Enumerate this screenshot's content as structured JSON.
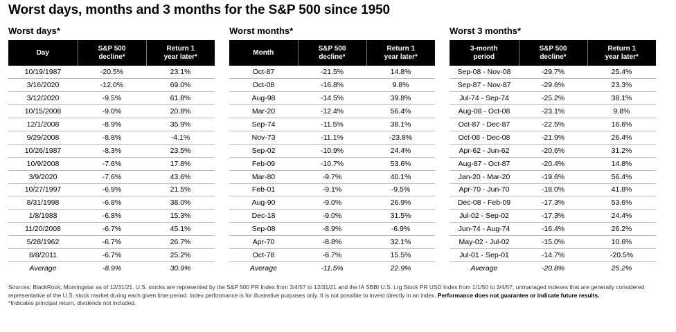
{
  "title": "Worst days, months and 3 months for the S&P 500 since 1950",
  "tables": [
    {
      "title": "Worst days*",
      "headers": [
        "Day",
        "S&P 500 decline*",
        "Return 1 year later*"
      ],
      "rows": [
        [
          "10/19/1987",
          "-20.5%",
          "23.1%"
        ],
        [
          "3/16/2020",
          "-12.0%",
          "69.0%"
        ],
        [
          "3/12/2020",
          "-9.5%",
          "61.8%"
        ],
        [
          "10/15/2008",
          "-9.0%",
          "20.8%"
        ],
        [
          "12/1/2008",
          "-8.9%",
          "35.9%"
        ],
        [
          "9/29/2008",
          "-8.8%",
          "-4.1%"
        ],
        [
          "10/26/1987",
          "-8.3%",
          "23.5%"
        ],
        [
          "10/9/2008",
          "-7.6%",
          "17.8%"
        ],
        [
          "3/9/2020",
          "-7.6%",
          "43.6%"
        ],
        [
          "10/27/1997",
          "-6.9%",
          "21.5%"
        ],
        [
          "8/31/1998",
          "-6.8%",
          "38.0%"
        ],
        [
          "1/8/1988",
          "-6.8%",
          "15.3%"
        ],
        [
          "11/20/2008",
          "-6.7%",
          "45.1%"
        ],
        [
          "5/28/1962",
          "-6.7%",
          "26.7%"
        ],
        [
          "8/8/2011",
          "-6.7%",
          "25.2%"
        ]
      ],
      "average": [
        "Average",
        "-8.9%",
        "30.9%"
      ]
    },
    {
      "title": "Worst months*",
      "headers": [
        "Month",
        "S&P 500 decline*",
        "Return 1 year later*"
      ],
      "rows": [
        [
          "Oct-87",
          "-21.5%",
          "14.8%"
        ],
        [
          "Oct-08",
          "-16.8%",
          "9.8%"
        ],
        [
          "Aug-98",
          "-14.5%",
          "39.8%"
        ],
        [
          "Mar-20",
          "-12.4%",
          "56.4%"
        ],
        [
          "Sep-74",
          "-11.5%",
          "38.1%"
        ],
        [
          "Nov-73",
          "-11.1%",
          "-23.8%"
        ],
        [
          "Sep-02",
          "-10.9%",
          "24.4%"
        ],
        [
          "Feb-09",
          "-10.7%",
          "53.6%"
        ],
        [
          "Mar-80",
          "-9.7%",
          "40.1%"
        ],
        [
          "Feb-01",
          "-9.1%",
          "-9.5%"
        ],
        [
          "Aug-90",
          "-9.0%",
          "26.9%"
        ],
        [
          "Dec-18",
          "-9.0%",
          "31.5%"
        ],
        [
          "Sep-08",
          "-8.9%",
          "-6.9%"
        ],
        [
          "Apr-70",
          "-8.8%",
          "32.1%"
        ],
        [
          "Oct-78",
          "-8.7%",
          "15.5%"
        ]
      ],
      "average": [
        "Average",
        "-11.5%",
        "22.9%"
      ]
    },
    {
      "title": "Worst 3 months*",
      "headers": [
        "3-month period",
        "S&P 500 decline*",
        "Return 1 year later*"
      ],
      "rows": [
        [
          "Sep-08 - Nov-08",
          "-29.7%",
          "25.4%"
        ],
        [
          "Sep-87 - Nov-87",
          "-29.6%",
          "23.3%"
        ],
        [
          "Jul-74 - Sep-74",
          "-25.2%",
          "38.1%"
        ],
        [
          "Aug-08 - Oct-08",
          "-23.1%",
          "9.8%"
        ],
        [
          "Oct-87 - Dec-87",
          "-22.5%",
          "16.6%"
        ],
        [
          "Oct-08 - Dec-08",
          "-21.9%",
          "26.4%"
        ],
        [
          "Apr-62 - Jun-62",
          "-20.6%",
          "31.2%"
        ],
        [
          "Aug-87 - Oct-87",
          "-20.4%",
          "14.8%"
        ],
        [
          "Jan-20 - Mar-20",
          "-19.6%",
          "56.4%"
        ],
        [
          "Apr-70 - Jun-70",
          "-18.0%",
          "41.8%"
        ],
        [
          "Dec-08 - Feb-09",
          "-17.3%",
          "53.6%"
        ],
        [
          "Jul-02 - Sep-02",
          "-17.3%",
          "24.4%"
        ],
        [
          "Jun-74 - Aug-74",
          "-16.4%",
          "26.2%"
        ],
        [
          "May-02 - Jul-02",
          "-15.0%",
          "10.6%"
        ],
        [
          "Jul-01 - Sep-01",
          "-14.7%",
          "-20.5%"
        ]
      ],
      "average": [
        "Average",
        "-20.8%",
        "25.2%"
      ]
    }
  ],
  "footnote": {
    "sources": "Sources: BlackRock; Morningstar as of 12/31/21. U.S. stocks are represented by the S&P 500 PR Index from 3/4/57 to 12/31/21 and the IA SBBI U.S. Lrg Stock PR USD Index from 1/1/50 to 3/4/57, unmanaged indexes that are generally considered representative of the U.S. stock market during each given time period. Index performance is for illustrative purposes only. It is not possible to invest directly in an index.",
    "disclaimer": "Performance does not guarantee or indicate future results.",
    "asterisk": "*Indicates principal return, dividends not included."
  }
}
